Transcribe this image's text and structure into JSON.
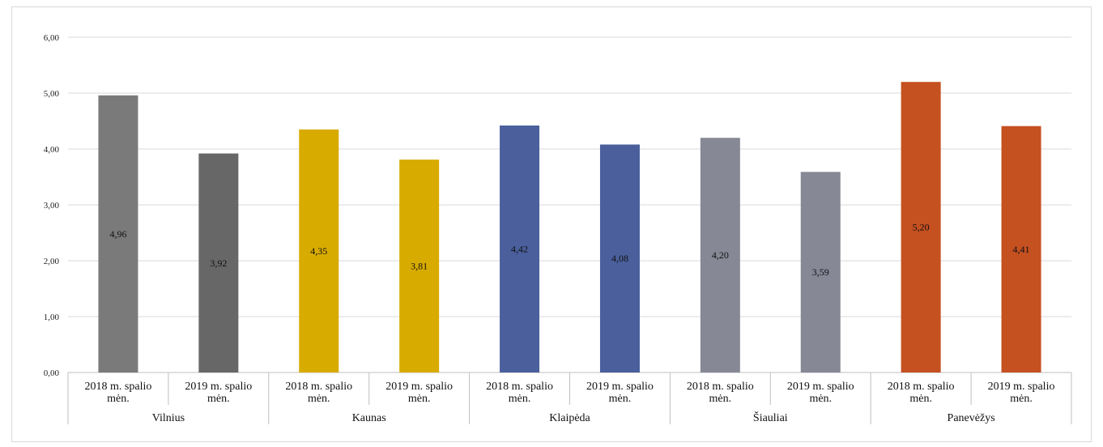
{
  "chart_data": {
    "type": "bar",
    "groups": [
      {
        "name": "Vilnius",
        "color": "#7a7a7a",
        "color2": "#676767",
        "bars": [
          {
            "label": "2018 m. spalio mėn.",
            "value": 4.96,
            "display": "4,96"
          },
          {
            "label": "2019 m. spalio mėn.",
            "value": 3.92,
            "display": "3,92"
          }
        ]
      },
      {
        "name": "Kaunas",
        "color": "#d8ab00",
        "color2": "#d8ab00",
        "bars": [
          {
            "label": "2018 m. spalio mėn.",
            "value": 4.35,
            "display": "4,35"
          },
          {
            "label": "2019 m. spalio mėn.",
            "value": 3.81,
            "display": "3,81"
          }
        ]
      },
      {
        "name": "Klaipėda",
        "color": "#4a5f9c",
        "color2": "#4a5f9c",
        "bars": [
          {
            "label": "2018 m. spalio mėn.",
            "value": 4.42,
            "display": "4,42"
          },
          {
            "label": "2019 m. spalio mėn.",
            "value": 4.08,
            "display": "4,08"
          }
        ]
      },
      {
        "name": "Šiauliai",
        "color": "#868896",
        "color2": "#868896",
        "bars": [
          {
            "label": "2018 m. spalio mėn.",
            "value": 4.2,
            "display": "4,20"
          },
          {
            "label": "2019 m. spalio mėn.",
            "value": 3.59,
            "display": "3,59"
          }
        ]
      },
      {
        "name": "Panevėžys",
        "color": "#c55020",
        "color2": "#c55020",
        "bars": [
          {
            "label": "2018 m. spalio mėn.",
            "value": 5.2,
            "display": "5,20"
          },
          {
            "label": "2019 m. spalio mėn.",
            "value": 4.41,
            "display": "4,41"
          }
        ]
      }
    ],
    "y_ticks": [
      "0,00",
      "1,00",
      "2,00",
      "3,00",
      "4,00",
      "5,00",
      "6,00"
    ],
    "ylim": [
      0,
      6
    ],
    "grid": true,
    "title": "",
    "xlabel": "",
    "ylabel": ""
  }
}
